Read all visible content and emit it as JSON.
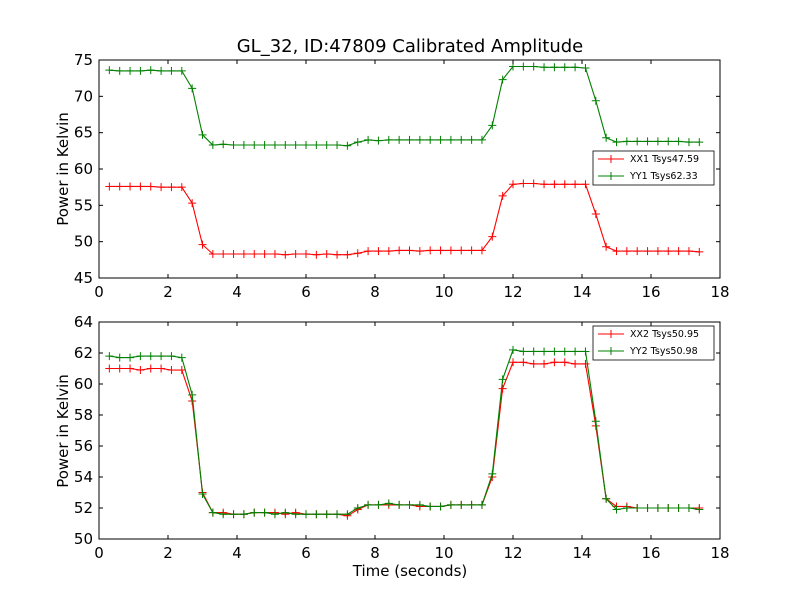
{
  "chart_data": [
    {
      "type": "line",
      "title": "GL_32, ID:47809 Calibrated Amplitude",
      "xlabel": "",
      "ylabel": "Power in Kelvin",
      "xlim": [
        0,
        18
      ],
      "ylim": [
        45,
        75
      ],
      "xticks": [
        0,
        2,
        4,
        6,
        8,
        10,
        12,
        14,
        16,
        18
      ],
      "yticks": [
        45,
        50,
        55,
        60,
        65,
        70,
        75
      ],
      "legend_position": "center-right",
      "grid": false,
      "marker": "+",
      "x": [
        0.3,
        0.6,
        0.9,
        1.2,
        1.5,
        1.8,
        2.1,
        2.4,
        2.7,
        3.0,
        3.3,
        3.6,
        3.9,
        4.2,
        4.5,
        4.8,
        5.1,
        5.4,
        5.7,
        6.0,
        6.3,
        6.6,
        6.9,
        7.2,
        7.5,
        7.8,
        8.1,
        8.4,
        8.7,
        9.0,
        9.3,
        9.6,
        9.9,
        10.2,
        10.5,
        10.8,
        11.1,
        11.4,
        11.7,
        12.0,
        12.3,
        12.6,
        12.9,
        13.2,
        13.5,
        13.8,
        14.1,
        14.4,
        14.7,
        15.0,
        15.3,
        15.6,
        15.9,
        16.2,
        16.5,
        16.8,
        17.1,
        17.4
      ],
      "series": [
        {
          "name": "XX1 Tsys47.59",
          "color": "#ff0000",
          "values": [
            57.6,
            57.6,
            57.6,
            57.6,
            57.6,
            57.5,
            57.5,
            57.5,
            55.3,
            49.6,
            48.3,
            48.3,
            48.3,
            48.3,
            48.3,
            48.3,
            48.3,
            48.2,
            48.3,
            48.3,
            48.2,
            48.3,
            48.2,
            48.2,
            48.4,
            48.7,
            48.7,
            48.7,
            48.8,
            48.8,
            48.7,
            48.8,
            48.8,
            48.8,
            48.8,
            48.8,
            48.8,
            50.7,
            56.3,
            57.9,
            58.0,
            58.0,
            57.9,
            57.9,
            57.9,
            57.9,
            57.9,
            53.8,
            49.3,
            48.7,
            48.7,
            48.7,
            48.7,
            48.7,
            48.7,
            48.7,
            48.7,
            48.6
          ]
        },
        {
          "name": "YY1 Tsys62.33",
          "color": "#008000",
          "values": [
            73.6,
            73.5,
            73.5,
            73.5,
            73.6,
            73.5,
            73.5,
            73.5,
            71.1,
            64.7,
            63.3,
            63.4,
            63.3,
            63.3,
            63.3,
            63.3,
            63.3,
            63.3,
            63.3,
            63.3,
            63.3,
            63.3,
            63.3,
            63.2,
            63.7,
            64.0,
            63.9,
            64.0,
            64.0,
            64.0,
            64.0,
            64.0,
            64.0,
            64.0,
            64.0,
            64.0,
            64.0,
            66.0,
            72.3,
            74.1,
            74.1,
            74.1,
            74.0,
            74.0,
            74.0,
            74.0,
            73.9,
            69.4,
            64.3,
            63.7,
            63.8,
            63.8,
            63.8,
            63.8,
            63.8,
            63.8,
            63.7,
            63.7
          ]
        }
      ]
    },
    {
      "type": "line",
      "title": "",
      "xlabel": "Time (seconds)",
      "ylabel": "Power in Kelvin",
      "xlim": [
        0,
        18
      ],
      "ylim": [
        50,
        64
      ],
      "xticks": [
        0,
        2,
        4,
        6,
        8,
        10,
        12,
        14,
        16,
        18
      ],
      "yticks": [
        50,
        52,
        54,
        56,
        58,
        60,
        62,
        64
      ],
      "legend_position": "top-right",
      "grid": false,
      "marker": "+",
      "x": [
        0.3,
        0.6,
        0.9,
        1.2,
        1.5,
        1.8,
        2.1,
        2.4,
        2.7,
        3.0,
        3.3,
        3.6,
        3.9,
        4.2,
        4.5,
        4.8,
        5.1,
        5.4,
        5.7,
        6.0,
        6.3,
        6.6,
        6.9,
        7.2,
        7.5,
        7.8,
        8.1,
        8.4,
        8.7,
        9.0,
        9.3,
        9.6,
        9.9,
        10.2,
        10.5,
        10.8,
        11.1,
        11.4,
        11.7,
        12.0,
        12.3,
        12.6,
        12.9,
        13.2,
        13.5,
        13.8,
        14.1,
        14.4,
        14.7,
        15.0,
        15.3,
        15.6,
        15.9,
        16.2,
        16.5,
        16.8,
        17.1,
        17.4
      ],
      "series": [
        {
          "name": "XX2 Tsys50.95",
          "color": "#ff0000",
          "values": [
            61.0,
            61.0,
            61.0,
            60.9,
            61.0,
            61.0,
            60.9,
            60.9,
            58.9,
            53.0,
            51.7,
            51.7,
            51.6,
            51.6,
            51.7,
            51.7,
            51.7,
            51.6,
            51.7,
            51.6,
            51.6,
            51.6,
            51.6,
            51.5,
            51.9,
            52.2,
            52.2,
            52.2,
            52.2,
            52.2,
            52.1,
            52.1,
            52.1,
            52.2,
            52.2,
            52.2,
            52.2,
            54.0,
            59.7,
            61.4,
            61.4,
            61.3,
            61.3,
            61.4,
            61.4,
            61.3,
            61.3,
            57.3,
            52.6,
            52.1,
            52.1,
            52.0,
            52.0,
            52.0,
            52.0,
            52.0,
            52.0,
            52.0
          ]
        },
        {
          "name": "YY2 Tsys50.98",
          "color": "#008000",
          "values": [
            61.8,
            61.7,
            61.7,
            61.8,
            61.8,
            61.8,
            61.8,
            61.7,
            59.3,
            52.9,
            51.7,
            51.6,
            51.6,
            51.6,
            51.7,
            51.7,
            51.6,
            51.7,
            51.6,
            51.6,
            51.6,
            51.6,
            51.6,
            51.6,
            52.0,
            52.2,
            52.2,
            52.3,
            52.2,
            52.2,
            52.2,
            52.1,
            52.1,
            52.2,
            52.2,
            52.2,
            52.2,
            54.2,
            60.3,
            62.2,
            62.1,
            62.1,
            62.1,
            62.1,
            62.1,
            62.1,
            62.1,
            57.6,
            52.6,
            51.9,
            52.0,
            52.0,
            52.0,
            52.0,
            52.0,
            52.0,
            52.0,
            51.9
          ]
        }
      ]
    }
  ]
}
